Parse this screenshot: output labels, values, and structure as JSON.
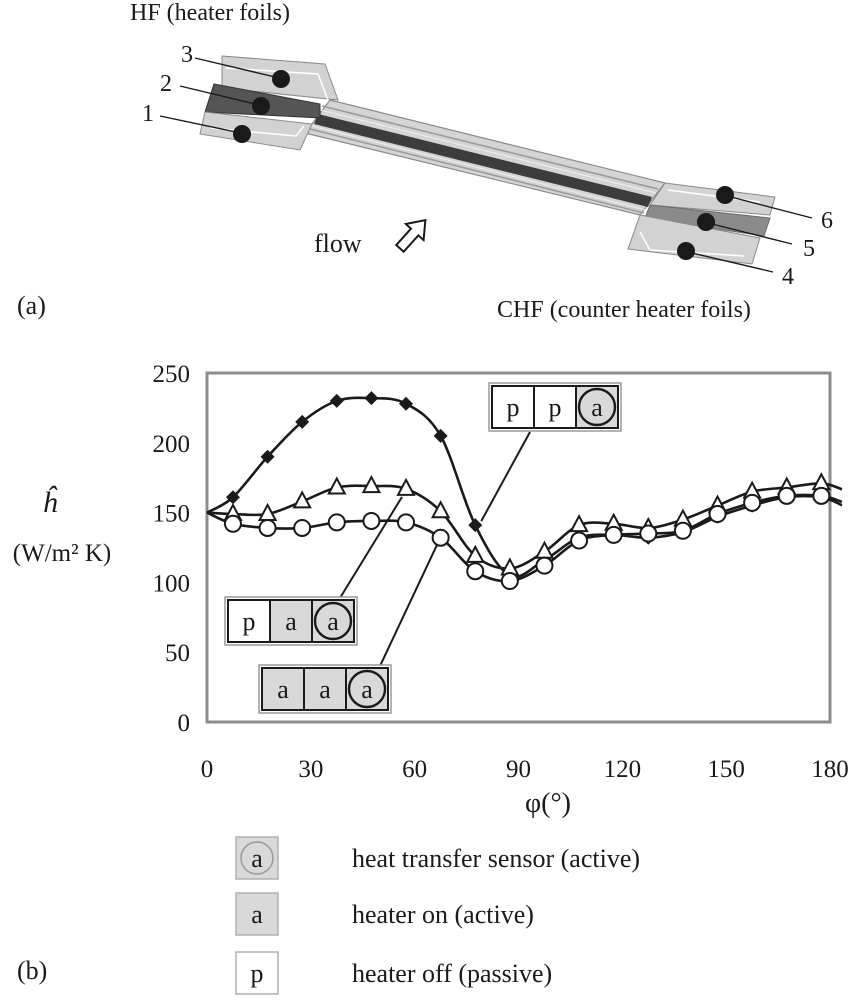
{
  "panel_a": {
    "hf_label": "HF (heater foils)",
    "chf_label": "CHF (counter heater foils)",
    "flow_label": "flow",
    "panel_label": "(a)",
    "sensor_numbers": [
      "1",
      "2",
      "3",
      "4",
      "5",
      "6"
    ]
  },
  "panel_b": {
    "panel_label": "(b)",
    "callouts": {
      "ppa": [
        "p",
        "p",
        "a"
      ],
      "paa": [
        "p",
        "a",
        "a"
      ],
      "aaa": [
        "a",
        "a",
        "a"
      ]
    },
    "legend": [
      {
        "symbol": "a",
        "label": "heat transfer sensor (active)"
      },
      {
        "symbol": "a",
        "label": "heater on (active)"
      },
      {
        "symbol": "p",
        "label": "heater off (passive)"
      }
    ]
  },
  "chart_data": {
    "type": "line",
    "xlabel": "φ(°)",
    "ylabel_symbol": "ĥ",
    "ylabel_unit": "(W/m² K)",
    "xlim": [
      0,
      180
    ],
    "ylim": [
      0,
      250
    ],
    "xticks": [
      0,
      30,
      60,
      90,
      120,
      150,
      180
    ],
    "yticks": [
      0,
      50,
      100,
      150,
      200,
      250
    ],
    "grid": false,
    "series": [
      {
        "marker": "diamond",
        "x": [
          0,
          7.5,
          17.5,
          27.5,
          37.5,
          47.5,
          57.5,
          67.5,
          77.5,
          87.5,
          97.5,
          107.5,
          117.5,
          127.5,
          137.5,
          147.5,
          157.5,
          167.5,
          177.5
        ],
        "y": [
          150,
          161,
          190,
          215,
          230,
          232,
          228,
          205,
          141,
          105,
          116,
          132,
          134,
          132,
          136,
          147,
          155,
          161,
          161
        ]
      },
      {
        "marker": "triangle",
        "x": [
          0,
          7.5,
          17.5,
          27.5,
          37.5,
          47.5,
          57.5,
          67.5,
          77.5,
          87.5,
          97.5,
          107.5,
          117.5,
          127.5,
          137.5,
          147.5,
          157.5,
          167.5,
          177.5
        ],
        "y": [
          150,
          149,
          149,
          158,
          168,
          169,
          167,
          151,
          119,
          110,
          122,
          141,
          142,
          139,
          145,
          155,
          165,
          168,
          171
        ]
      },
      {
        "marker": "circle",
        "x": [
          0,
          7.5,
          17.5,
          27.5,
          37.5,
          47.5,
          57.5,
          67.5,
          77.5,
          87.5,
          97.5,
          107.5,
          117.5,
          127.5,
          137.5,
          147.5,
          157.5,
          167.5,
          177.5
        ],
        "y": [
          150,
          142,
          139,
          139,
          143,
          144,
          143,
          132,
          108,
          101,
          112,
          130,
          134,
          135,
          137,
          149,
          157,
          162,
          162
        ]
      }
    ]
  }
}
